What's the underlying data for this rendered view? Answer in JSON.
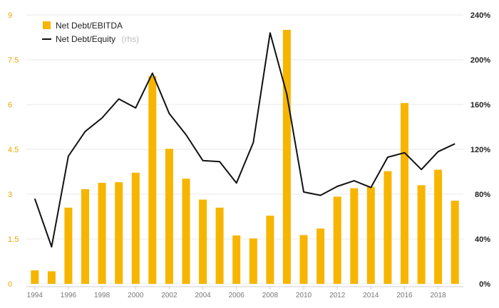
{
  "chart_data": {
    "type": "bar+line",
    "x": [
      1994,
      1995,
      1996,
      1997,
      1998,
      1999,
      2000,
      2001,
      2002,
      2003,
      2004,
      2005,
      2006,
      2007,
      2008,
      2009,
      2010,
      2011,
      2012,
      2013,
      2014,
      2015,
      2016,
      2017,
      2018,
      2019
    ],
    "x_tick_labels": [
      "1994",
      "1996",
      "1998",
      "2000",
      "2002",
      "2004",
      "2006",
      "2008",
      "2010",
      "2012",
      "2014",
      "2016",
      "2018"
    ],
    "series": [
      {
        "name": "Net Debt/EBITDA",
        "type": "bar",
        "axis": "left",
        "color": "#f7b500",
        "values": [
          0.45,
          0.42,
          2.55,
          3.17,
          3.38,
          3.4,
          3.72,
          6.95,
          4.52,
          3.52,
          2.82,
          2.55,
          1.62,
          1.52,
          2.28,
          8.5,
          1.63,
          1.85,
          2.92,
          3.2,
          3.25,
          3.77,
          6.05,
          3.3,
          3.82,
          2.78
        ]
      },
      {
        "name": "Net Debt/Equity",
        "name_suffix": "(rhs)",
        "type": "line",
        "axis": "right",
        "color": "#111111",
        "values": [
          76,
          33,
          114,
          136,
          148,
          165,
          157,
          188,
          152,
          133,
          110,
          109,
          90,
          126,
          224,
          169,
          82,
          79,
          87,
          92,
          86,
          113,
          117,
          102,
          118,
          125
        ]
      }
    ],
    "left_axis": {
      "ylim": [
        0,
        9
      ],
      "ticks": [
        "0",
        "1.5",
        "3",
        "4.5",
        "6",
        "7.5",
        "9"
      ],
      "color": "#f0a500"
    },
    "right_axis": {
      "ylim": [
        0,
        240
      ],
      "ticks": [
        "0%",
        "40%",
        "80%",
        "120%",
        "160%",
        "200%",
        "240%"
      ],
      "color": "#222222"
    },
    "grid": true,
    "legend_position": "top-left"
  }
}
